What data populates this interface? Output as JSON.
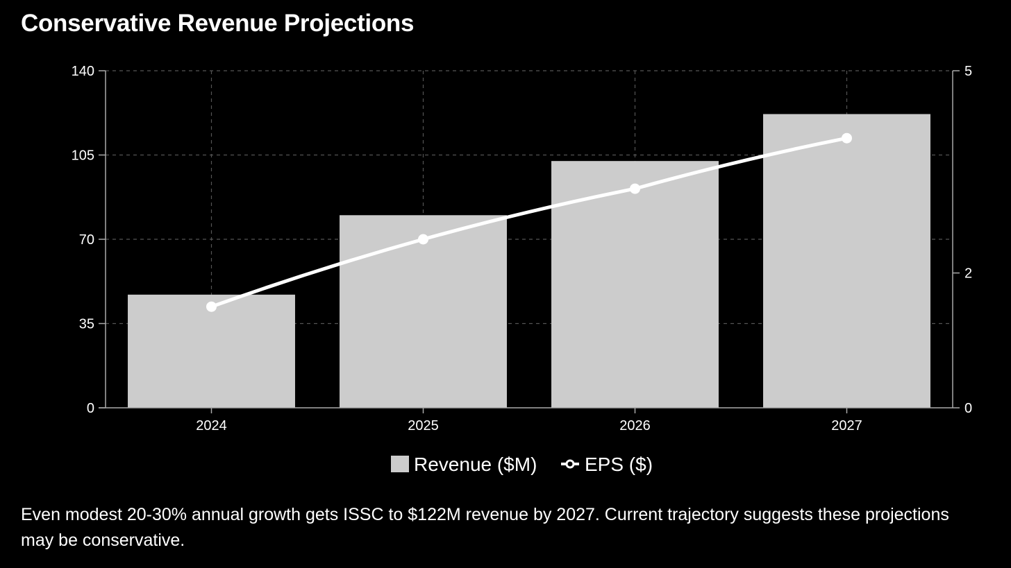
{
  "title": "Conservative Revenue Projections",
  "caption": "Even modest 20-30% annual growth gets ISSC to $122M revenue by 2027. Current trajectory suggests these projections may be conservative.",
  "colors": {
    "background": "#000000",
    "bar": "#cccccc",
    "line": "#ffffff",
    "grid": "#555555",
    "text": "#ffffff"
  },
  "chart_data": {
    "type": "bar",
    "categories": [
      "2024",
      "2025",
      "2026",
      "2027"
    ],
    "series": [
      {
        "name": "Revenue ($M)",
        "type": "bar",
        "axis": "left",
        "values": [
          47,
          80,
          102.5,
          122
        ]
      },
      {
        "name": "EPS ($)",
        "type": "line",
        "axis": "right",
        "values": [
          1.5,
          2.5,
          3.25,
          4.0
        ]
      }
    ],
    "y_left": {
      "lim": [
        0,
        140
      ],
      "ticks": [
        "0",
        "35",
        "70",
        "105",
        "140"
      ]
    },
    "y_right": {
      "lim": [
        0,
        5
      ],
      "ticks": [
        "0",
        "2",
        "5"
      ]
    },
    "grid": true,
    "legend": "bottom-center"
  }
}
